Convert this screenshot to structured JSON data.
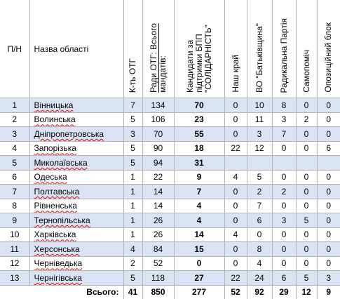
{
  "header": [
    "П/Н",
    "Назва області",
    "К-ть ОТГ",
    "Ради ОТГ: Всього мандатів:",
    "Кандидати за підтримки БПП \"СОЛІДАРНІСТЬ\"",
    "Наш край",
    "ВО \"Батьківщина\"",
    "Радикальна Партія",
    "Самопоміч",
    "Опозиційний блок"
  ],
  "rows": [
    [
      1,
      "Вінницька",
      7,
      134,
      70,
      0,
      10,
      8,
      0,
      0
    ],
    [
      2,
      "Волинська",
      5,
      106,
      23,
      0,
      11,
      3,
      2,
      0
    ],
    [
      3,
      "Дніпропетровська",
      3,
      70,
      55,
      0,
      3,
      7,
      0,
      0
    ],
    [
      4,
      "Запорізька",
      5,
      90,
      18,
      22,
      12,
      0,
      0,
      6
    ],
    [
      5,
      "Миколаївська",
      5,
      94,
      31
    ],
    [
      6,
      "Одеська",
      1,
      22,
      9,
      4,
      5,
      0,
      0,
      0
    ],
    [
      7,
      "Полтавська",
      1,
      14,
      7,
      0,
      2,
      2,
      0,
      0
    ],
    [
      8,
      "Рівненська",
      1,
      14,
      4,
      0,
      7,
      0,
      0,
      0
    ],
    [
      9,
      "Тернопільська",
      1,
      26,
      4,
      0,
      6,
      3,
      5,
      0
    ],
    [
      10,
      "Харківська",
      1,
      26,
      14,
      4,
      0,
      0,
      0,
      0
    ],
    [
      11,
      "Херсонська",
      4,
      84,
      15,
      0,
      8,
      0,
      0,
      0
    ],
    [
      12,
      "Черніведька",
      2,
      52,
      0,
      0,
      4,
      0,
      0,
      0
    ],
    [
      13,
      "Чернігівська",
      5,
      118,
      27,
      22,
      24,
      6,
      5,
      3
    ]
  ],
  "total": {
    "label": "Всього:",
    "values": [
      41,
      850,
      277,
      52,
      92,
      29,
      12,
      9
    ]
  }
}
